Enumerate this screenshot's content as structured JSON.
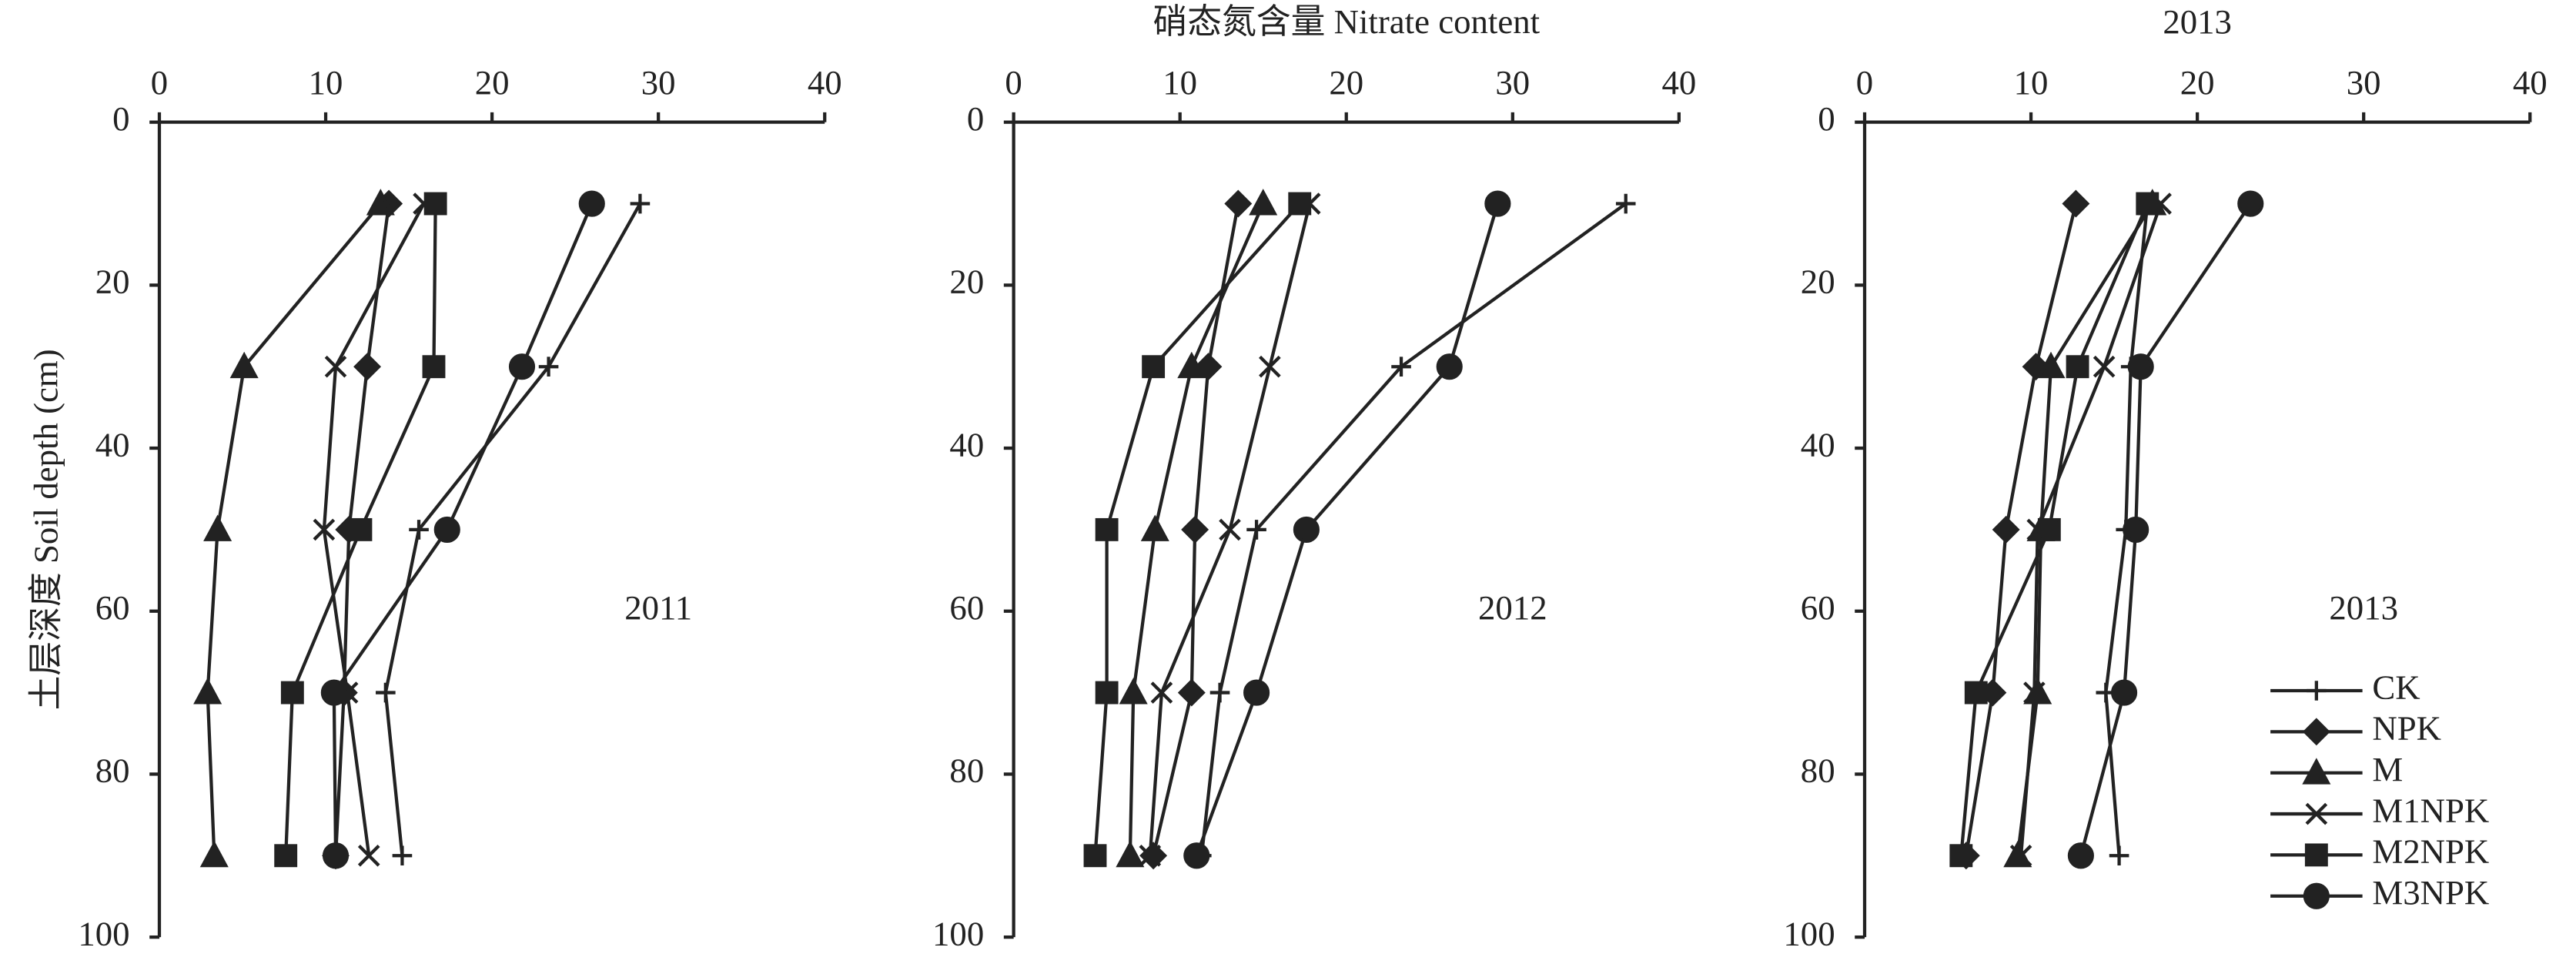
{
  "chart_data": [
    {
      "type": "line",
      "ylabel": "土层深度 Soil depth (cm)",
      "annotation": "2011",
      "xlim": [
        0,
        40
      ],
      "xticks": [
        0,
        10,
        20,
        30,
        40
      ],
      "ylim": [
        0,
        100
      ],
      "yticks": [
        0,
        20,
        40,
        60,
        80,
        100
      ],
      "y_inverted": true,
      "legend": false,
      "y": [
        10,
        30,
        50,
        70,
        90
      ],
      "series": [
        {
          "name": "CK",
          "color": "#222222",
          "marker": "plus",
          "values": [
            28.9,
            23.4,
            15.6,
            13.6,
            14.6
          ]
        },
        {
          "name": "NPK",
          "color": "#222222",
          "marker": "diamond",
          "values": [
            13.8,
            12.5,
            11.4,
            11.1,
            10.6
          ]
        },
        {
          "name": "M",
          "color": "#222222",
          "marker": "triangle",
          "values": [
            13.3,
            5.1,
            3.5,
            2.9,
            3.3
          ]
        },
        {
          "name": "M1NPK",
          "color": "#222222",
          "marker": "cross",
          "values": [
            15.9,
            10.6,
            9.9,
            11.3,
            12.6
          ]
        },
        {
          "name": "M2NPK",
          "color": "#222222",
          "marker": "square",
          "values": [
            16.6,
            16.5,
            12.1,
            8.0,
            7.6
          ]
        },
        {
          "name": "M3NPK",
          "color": "#222222",
          "marker": "circle",
          "values": [
            26.0,
            21.8,
            17.3,
            10.5,
            10.6
          ]
        }
      ]
    },
    {
      "type": "line",
      "title": "硝态氮含量 Nitrate content",
      "annotation": "2012",
      "xlim": [
        0,
        40
      ],
      "xticks": [
        0,
        10,
        20,
        30,
        40
      ],
      "ylim": [
        0,
        100
      ],
      "yticks": [
        0,
        20,
        40,
        60,
        80,
        100
      ],
      "y_inverted": true,
      "legend": false,
      "y": [
        10,
        30,
        50,
        70,
        90
      ],
      "series": [
        {
          "name": "CK",
          "color": "#222222",
          "marker": "plus",
          "values": [
            36.8,
            23.3,
            14.6,
            12.4,
            11.3
          ]
        },
        {
          "name": "NPK",
          "color": "#222222",
          "marker": "diamond",
          "values": [
            13.5,
            11.7,
            10.9,
            10.7,
            8.4
          ]
        },
        {
          "name": "M",
          "color": "#222222",
          "marker": "triangle",
          "values": [
            15.0,
            10.7,
            8.5,
            7.2,
            7.0
          ]
        },
        {
          "name": "M1NPK",
          "color": "#222222",
          "marker": "cross",
          "values": [
            17.8,
            15.4,
            13.0,
            8.9,
            8.2
          ]
        },
        {
          "name": "M2NPK",
          "color": "#222222",
          "marker": "square",
          "values": [
            17.2,
            8.4,
            5.6,
            5.6,
            4.9
          ]
        },
        {
          "name": "M3NPK",
          "color": "#222222",
          "marker": "circle",
          "values": [
            29.1,
            26.2,
            17.6,
            14.6,
            11.0
          ]
        }
      ]
    },
    {
      "type": "line",
      "title": "2013",
      "annotation": "2013",
      "xlim": [
        0,
        40
      ],
      "xticks": [
        0,
        10,
        20,
        30,
        40
      ],
      "ylim": [
        0,
        100
      ],
      "yticks": [
        0,
        20,
        40,
        60,
        80,
        100
      ],
      "y_inverted": true,
      "legend": "lower right",
      "y": [
        10,
        30,
        50,
        70,
        90
      ],
      "series": [
        {
          "name": "CK",
          "color": "#222222",
          "marker": "plus",
          "values": [
            17.0,
            16.0,
            15.7,
            14.5,
            15.3
          ]
        },
        {
          "name": "NPK",
          "color": "#222222",
          "marker": "diamond",
          "values": [
            12.7,
            10.3,
            8.5,
            7.7,
            6.1
          ]
        },
        {
          "name": "M",
          "color": "#222222",
          "marker": "triangle",
          "values": [
            17.3,
            11.2,
            10.6,
            10.4,
            9.2
          ]
        },
        {
          "name": "M1NPK",
          "color": "#222222",
          "marker": "cross",
          "values": [
            17.8,
            14.4,
            10.4,
            10.2,
            9.4
          ]
        },
        {
          "name": "M2NPK",
          "color": "#222222",
          "marker": "square",
          "values": [
            17.0,
            12.8,
            11.1,
            6.7,
            5.8
          ]
        },
        {
          "name": "M3NPK",
          "color": "#222222",
          "marker": "circle",
          "values": [
            23.2,
            16.6,
            16.3,
            15.6,
            13.0
          ]
        }
      ]
    }
  ]
}
